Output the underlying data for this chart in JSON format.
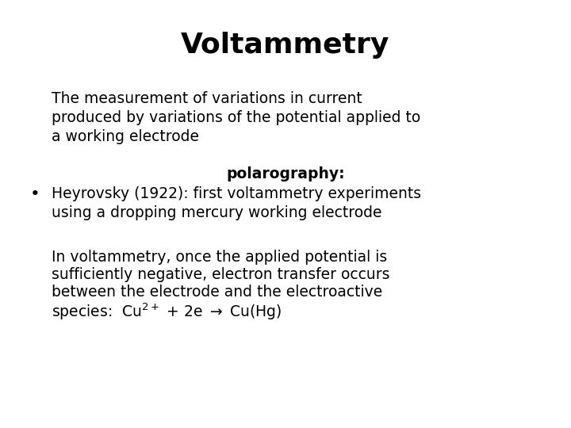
{
  "title": "Voltammetry",
  "title_fontsize": 26,
  "title_fontweight": "bold",
  "title_family": "DejaVu Sans",
  "background_color": "#ffffff",
  "text_color": "#000000",
  "body_fontsize": 13.5,
  "body_family": "DejaVu Sans",
  "paragraph1": "The measurement of variations in current\nproduced by variations of the potential applied to\na working electrode",
  "polarography": "polarography:",
  "bullet1": "Heyrovsky (1922): first voltammetry experiments\nusing a dropping mercury working electrode",
  "paragraph2": "In voltammetry, once the applied potential is\nsufficiently negative, electron transfer occurs\nbetween the electrode and the electroactive\nspecies:  Cu²⁺ + 2e → Cu(Hg)"
}
